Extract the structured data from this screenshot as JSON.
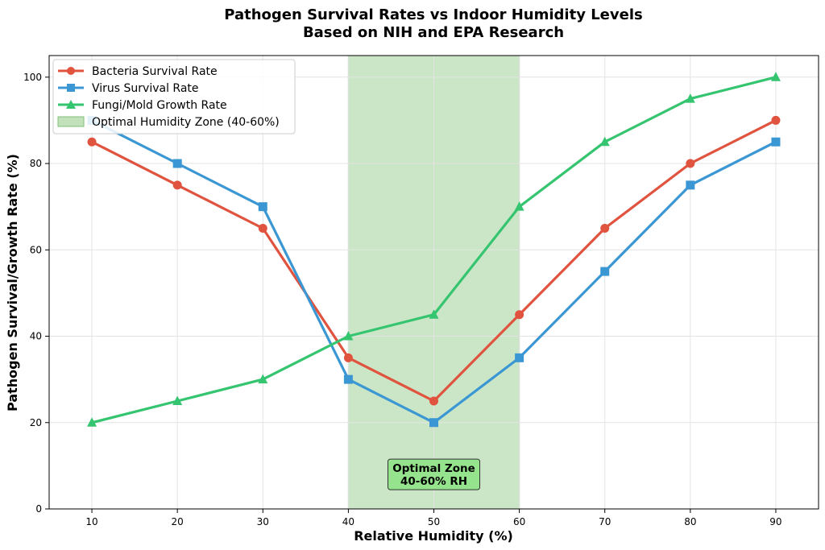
{
  "chart_data": {
    "type": "line",
    "title": "Pathogen Survival Rates vs Indoor Humidity Levels",
    "subtitle": "Based on NIH and EPA Research",
    "xlabel": "Relative Humidity (%)",
    "ylabel": "Pathogen Survival/Growth Rate (%)",
    "x": [
      10,
      20,
      30,
      40,
      50,
      60,
      70,
      80,
      90
    ],
    "xlim": [
      5,
      95
    ],
    "ylim": [
      0,
      105
    ],
    "xticks": [
      10,
      20,
      30,
      40,
      50,
      60,
      70,
      80,
      90
    ],
    "yticks": [
      0,
      20,
      40,
      60,
      80,
      100
    ],
    "grid": true,
    "legend_position": "top-left",
    "series": [
      {
        "name": "Bacteria Survival Rate",
        "values": [
          85,
          75,
          65,
          35,
          25,
          45,
          65,
          80,
          90
        ],
        "color": "#e0533f",
        "marker": "circle"
      },
      {
        "name": "Virus Survival Rate",
        "values": [
          90,
          80,
          70,
          30,
          20,
          35,
          55,
          75,
          85
        ],
        "color": "#3b97d3",
        "marker": "square"
      },
      {
        "name": "Fungi/Mold Growth Rate",
        "values": [
          20,
          25,
          30,
          40,
          45,
          70,
          85,
          95,
          100
        ],
        "color": "#35c46f",
        "marker": "triangle"
      }
    ],
    "shaded_region": {
      "name": "Optimal Humidity Zone (40-60%)",
      "x_range": [
        40,
        60
      ],
      "color": "#a9d6a0",
      "annotation": [
        "Optimal Zone",
        "40-60% RH"
      ],
      "annotation_x": 50,
      "annotation_y": 8,
      "annotation_bg": "#95e38c"
    }
  }
}
